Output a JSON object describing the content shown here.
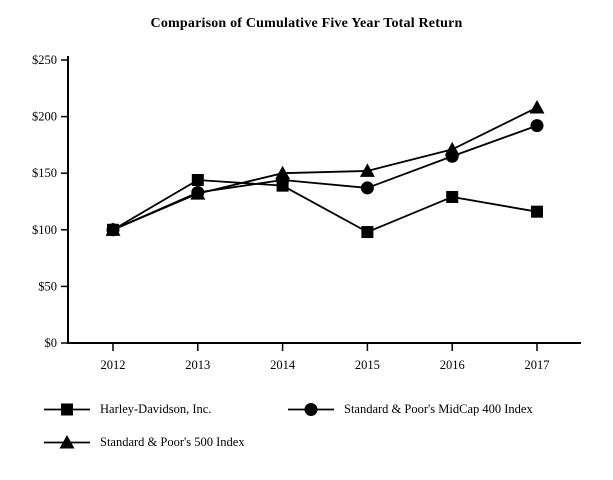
{
  "chart_data": {
    "type": "line",
    "title": "Comparison of Cumulative Five Year Total Return",
    "categories": [
      "2012",
      "2013",
      "2014",
      "2015",
      "2016",
      "2017"
    ],
    "series": [
      {
        "name": "Harley-Davidson, Inc.",
        "marker": "square",
        "values": [
          100,
          144,
          139,
          98,
          129,
          116
        ]
      },
      {
        "name": "Standard & Poor's MidCap 400 Index",
        "marker": "circle",
        "values": [
          100,
          133,
          144,
          137,
          165,
          192
        ]
      },
      {
        "name": "Standard & Poor's 500 Index",
        "marker": "triangle",
        "values": [
          100,
          132,
          150,
          152,
          171,
          208
        ]
      }
    ],
    "xlabel": "",
    "ylabel": "",
    "y_tick_labels": [
      "$0",
      "$50",
      "$100",
      "$150",
      "$200",
      "$250"
    ],
    "y_tick_values": [
      0,
      50,
      100,
      150,
      200,
      250
    ],
    "ylim": [
      0,
      250
    ],
    "grid": false,
    "legend_position": "bottom",
    "line_color": "#000000",
    "background_color": "#ffffff"
  }
}
